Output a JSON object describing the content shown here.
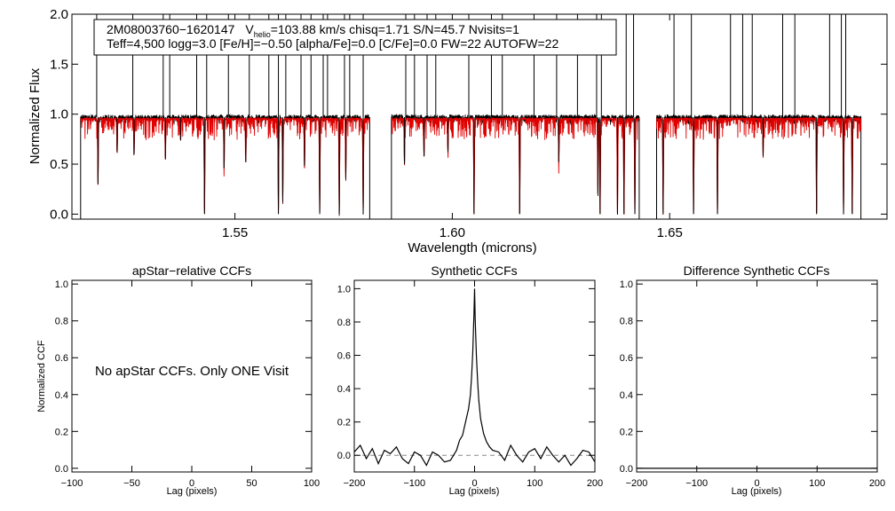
{
  "header": {
    "line1_id": "2M08003760−1620147",
    "line1_v": "V",
    "line1_vsub": "helio",
    "line1_rest": "=103.88 km/s  chisq=1.71  S/N=45.7  Nvisits=1",
    "line2": "Teff=4,500 logg=3.0 [Fe/H]=−0.50 [alpha/Fe]=0.0 [C/Fe]=0.0 FW=22 AUTOFW=22"
  },
  "colors": {
    "observed": "#000000",
    "model": "#e00000",
    "zero_line": "#888888"
  },
  "chart_data": [
    {
      "type": "line",
      "title": "",
      "xlabel": "Wavelength (microns)",
      "ylabel": "Normalized Flux",
      "xlim": [
        1.5125,
        1.7
      ],
      "ylim": [
        -0.05,
        2.0
      ],
      "xticks": [
        1.55,
        1.6,
        1.65
      ],
      "xtick_labels": [
        "1.55",
        "1.60",
        "1.65"
      ],
      "yticks": [
        0.0,
        0.5,
        1.0,
        1.5,
        2.0
      ],
      "ytick_labels": [
        "0.0",
        "0.5",
        "1.0",
        "1.5",
        "2.0"
      ],
      "chips": [
        [
          1.5145,
          1.581
        ],
        [
          1.586,
          1.643
        ],
        [
          1.647,
          1.694
        ]
      ],
      "series": [
        {
          "name": "observed",
          "continuum": 0.97,
          "absorption_lines": [
            [
              1.5185,
              0.3
            ],
            [
              1.5229,
              0.62
            ],
            [
              1.5268,
              0.6
            ],
            [
              1.534,
              0.55
            ],
            [
              1.5375,
              0.74
            ],
            [
              1.543,
              0.0
            ],
            [
              1.5475,
              0.46
            ],
            [
              1.5525,
              0.52
            ],
            [
              1.56,
              0.0
            ],
            [
              1.561,
              0.12
            ],
            [
              1.566,
              0.48
            ],
            [
              1.5695,
              0.0
            ],
            [
              1.574,
              0.0
            ],
            [
              1.5755,
              0.35
            ],
            [
              1.5795,
              0.0
            ],
            [
              1.589,
              0.5
            ],
            [
              1.5935,
              0.58
            ],
            [
              1.599,
              0.62
            ],
            [
              1.605,
              0.0
            ],
            [
              1.6155,
              0.0
            ],
            [
              1.6245,
              0.52
            ],
            [
              1.6335,
              0.2
            ],
            [
              1.634,
              0.0
            ],
            [
              1.638,
              0.0
            ],
            [
              1.6395,
              0.0
            ],
            [
              1.642,
              0.0
            ],
            [
              1.6485,
              0.0
            ],
            [
              1.6555,
              0.0
            ],
            [
              1.661,
              0.0
            ],
            [
              1.6715,
              0.58
            ],
            [
              1.6838,
              0.0
            ],
            [
              1.69,
              0.0
            ],
            [
              1.692,
              0.0
            ]
          ],
          "emission_spikes": [
            1.5182,
            1.5265,
            1.5335,
            1.535,
            1.5412,
            1.5435,
            1.5485,
            1.5533,
            1.5578,
            1.56,
            1.5617,
            1.5652,
            1.5675,
            1.5703,
            1.5713,
            1.5752,
            1.5764,
            1.5795,
            1.5893,
            1.5913,
            1.5942,
            1.5962,
            1.6038,
            1.609,
            1.6115,
            1.6188,
            1.624,
            1.6288,
            1.6332,
            1.6343,
            1.64,
            1.6417,
            1.651,
            1.655,
            1.664,
            1.6668,
            1.669,
            1.676,
            1.6788,
            1.6868,
            1.6895,
            1.6905
          ]
        },
        {
          "name": "model",
          "continuum": 0.955
        }
      ]
    },
    {
      "type": "text_panel",
      "title": "apStar−relative CCFs",
      "xlabel": "Lag (pixels)",
      "ylabel": "Normalized CCF",
      "xlim": [
        -100,
        100
      ],
      "ylim": [
        -0.02,
        1.02
      ],
      "xticks": [
        -100,
        -50,
        0,
        50,
        100
      ],
      "xtick_labels": [
        "−100",
        "−50",
        "0",
        "50",
        "100"
      ],
      "yticks": [
        0.0,
        0.2,
        0.4,
        0.6,
        0.8,
        1.0
      ],
      "ytick_labels": [
        "0.0",
        "0.2",
        "0.4",
        "0.6",
        "0.8",
        "1.0"
      ],
      "message": "No apStar CCFs.  Only ONE Visit"
    },
    {
      "type": "line",
      "title": "Synthetic CCFs",
      "xlabel": "Lag (pixels)",
      "xlim": [
        -200,
        200
      ],
      "ylim": [
        -0.1,
        1.05
      ],
      "xticks": [
        -200,
        -100,
        0,
        100,
        200
      ],
      "xtick_labels": [
        "−200",
        "−100",
        "0",
        "100",
        "200"
      ],
      "yticks": [
        0.0,
        0.2,
        0.4,
        0.6,
        0.8,
        1.0
      ],
      "ytick_labels": [
        "0.0",
        "0.2",
        "0.4",
        "0.6",
        "0.8",
        "1.0"
      ],
      "peak_lag": 0,
      "peak_value": 1.0,
      "zero_line": 0.0,
      "x": [
        -200,
        -190,
        -180,
        -170,
        -160,
        -150,
        -140,
        -130,
        -120,
        -110,
        -100,
        -90,
        -80,
        -70,
        -60,
        -50,
        -40,
        -30,
        -25,
        -20,
        -15,
        -10,
        -7,
        -5,
        -3,
        -1,
        0,
        1,
        3,
        5,
        7,
        10,
        15,
        20,
        25,
        30,
        40,
        50,
        60,
        70,
        80,
        90,
        100,
        110,
        120,
        130,
        140,
        150,
        160,
        170,
        180,
        190,
        200
      ],
      "y": [
        0.02,
        0.06,
        -0.02,
        0.04,
        -0.05,
        0.03,
        0.01,
        0.05,
        -0.02,
        -0.05,
        0.02,
        0.0,
        -0.06,
        0.02,
        0.0,
        -0.04,
        -0.03,
        0.03,
        0.09,
        0.12,
        0.2,
        0.28,
        0.36,
        0.47,
        0.62,
        0.85,
        1.0,
        0.82,
        0.6,
        0.45,
        0.33,
        0.22,
        0.13,
        0.08,
        0.05,
        0.03,
        0.02,
        -0.03,
        0.06,
        0.0,
        -0.04,
        0.02,
        0.04,
        -0.02,
        0.05,
        0.0,
        -0.04,
        0.0,
        -0.06,
        -0.02,
        0.03,
        0.02,
        -0.04
      ]
    },
    {
      "type": "line",
      "title": "Difference Synthetic CCFs",
      "xlabel": "Lag (pixels)",
      "xlim": [
        -200,
        200
      ],
      "ylim": [
        -0.02,
        1.02
      ],
      "xticks": [
        -200,
        -100,
        0,
        100,
        200
      ],
      "xtick_labels": [
        "−200",
        "−100",
        "0",
        "100",
        "200"
      ],
      "yticks": [
        0.0,
        0.2,
        0.4,
        0.6,
        0.8,
        1.0
      ],
      "ytick_labels": [
        "0.0",
        "0.2",
        "0.4",
        "0.6",
        "0.8",
        "1.0"
      ],
      "x": [
        -200,
        200
      ],
      "y": [
        0.0,
        0.0
      ]
    }
  ]
}
